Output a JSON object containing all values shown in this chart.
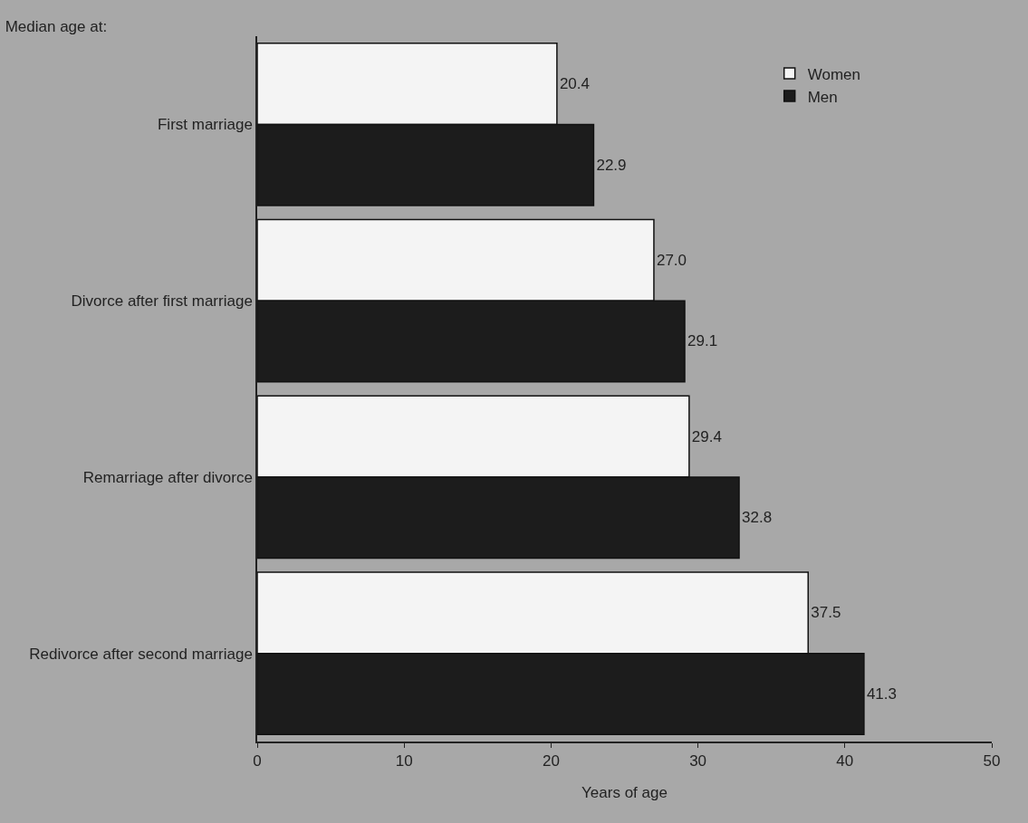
{
  "chart_data": {
    "type": "bar",
    "orientation": "horizontal",
    "title": "Median age at:",
    "xlabel": "Years of age",
    "categories": [
      "First marriage",
      "Divorce after first marriage",
      "Remarriage after divorce",
      "Redivorce after second marriage"
    ],
    "series": [
      {
        "name": "Women",
        "color": "#f4f4f4",
        "values": [
          20.4,
          27.0,
          29.4,
          37.5
        ],
        "value_labels": [
          "20.4",
          "27.0",
          "29.4",
          "37.5"
        ]
      },
      {
        "name": "Men",
        "color": "#1c1c1c",
        "values": [
          22.9,
          29.1,
          32.8,
          41.3
        ],
        "value_labels": [
          "22.9",
          "29.1",
          "32.8",
          "41.3"
        ]
      }
    ],
    "xlim": [
      0,
      50
    ],
    "xticks": [
      0,
      10,
      20,
      30,
      40,
      50
    ],
    "grid": false,
    "legend": "top right"
  }
}
